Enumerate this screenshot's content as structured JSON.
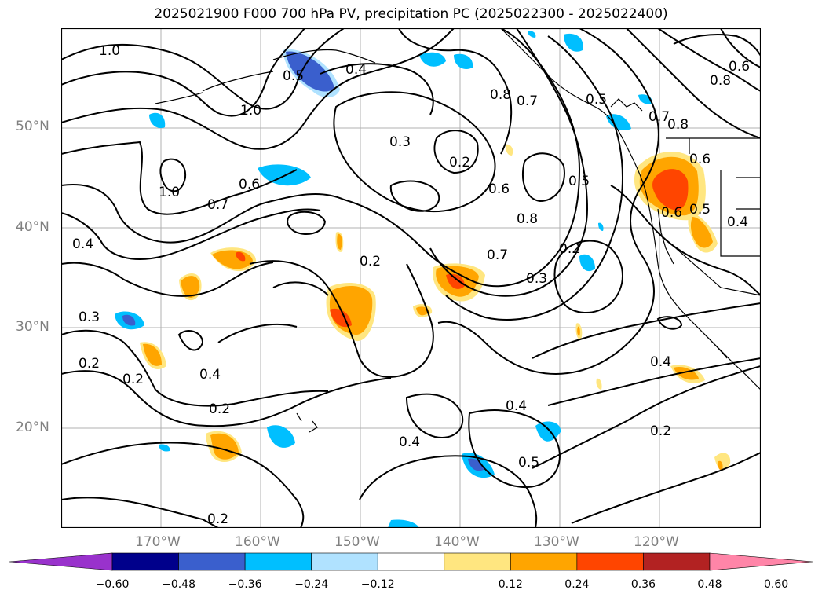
{
  "title": "2025021900 F000 700 hPa PV, precipitation PC (2025022300 - 2025022400)",
  "lat_labels": [
    "50°N",
    "40°N",
    "30°N",
    "20°N"
  ],
  "lon_labels": [
    "170°W",
    "160°W",
    "150°W",
    "140°W",
    "130°W",
    "120°W"
  ],
  "contour_labels": [
    "1.0",
    "0.4",
    "0.5",
    "0.8",
    "0.7",
    "0.5",
    "0.6",
    "0.8",
    "0.7",
    "0.8",
    "1.0",
    "0.3",
    "0.2",
    "0.6",
    "0.6",
    "1.0",
    "0.7",
    "0.6",
    "0.5",
    "0.8",
    "0.4",
    "0.2",
    "0.3",
    "0.7",
    "0.2",
    "0.6",
    "0.5",
    "0.4",
    "0.3",
    "0.2",
    "0.2",
    "0.4",
    "0.2",
    "0.4",
    "0.4",
    "0.5",
    "0.4",
    "0.2",
    "0.2"
  ],
  "colorbar": {
    "ticks": [
      "−0.60",
      "−0.48",
      "−0.36",
      "−0.24",
      "−0.12",
      "0.12",
      "0.24",
      "0.36",
      "0.48",
      "0.60"
    ],
    "colors": [
      "#9932cc",
      "#00008b",
      "#3a5fcd",
      "#00bfff",
      "#b0e2ff",
      "#ffffff",
      "#ffe680",
      "#ffa500",
      "#ff4500",
      "#b22222",
      "#ff85a8"
    ]
  }
}
